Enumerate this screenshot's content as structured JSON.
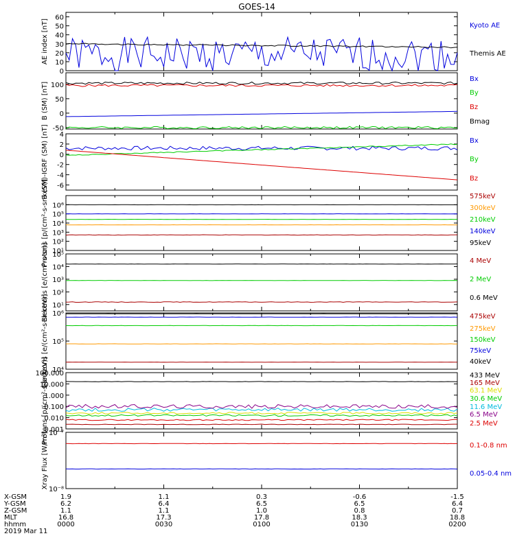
{
  "title": "GOES-14",
  "colors": {
    "black": "#000000",
    "blue": "#0000dd",
    "red": "#dd0000",
    "green": "#00cc00",
    "orange": "#ff9900",
    "cyan": "#00bbdd",
    "darkred": "#aa0000",
    "yellow": "#dddd00",
    "purple": "#880088"
  },
  "chart_data": [
    {
      "type": "line",
      "id": "ae",
      "ylabel": "AE index [nT]",
      "ylim": [
        0,
        65
      ],
      "yticks": [
        "0",
        "10",
        "20",
        "30",
        "40",
        "50",
        "60"
      ],
      "series": [
        {
          "name": "Kyoto AE",
          "color": "blue",
          "level": 18,
          "amp": 3,
          "seed": 1
        },
        {
          "name": "Themis AE",
          "color": "black",
          "level": 30,
          "amp": 0.8,
          "seed": 2
        }
      ]
    },
    {
      "type": "line",
      "id": "bsm",
      "ylabel": "B (SM) [nT]",
      "ylim": [
        -55,
        140
      ],
      "yticks": [
        "-50",
        "0",
        "50",
        "100"
      ],
      "series": [
        {
          "name": "Bx",
          "color": "blue",
          "level": -10,
          "amp": 0.2,
          "seed": 3
        },
        {
          "name": "By",
          "color": "green",
          "level": -50,
          "amp": 0.2,
          "seed": 4
        },
        {
          "name": "Bz",
          "color": "red",
          "level": 96,
          "amp": 0.2,
          "seed": 5
        },
        {
          "name": "Bmag",
          "color": "black",
          "level": 104,
          "amp": 0.2,
          "seed": 6
        }
      ]
    },
    {
      "type": "line",
      "id": "bigrf",
      "ylabel": "B (SM)-IGRF (SM) [nT]",
      "ylim": [
        -7,
        4
      ],
      "yticks": [
        "-6",
        "-4",
        "-2",
        "0",
        "2",
        "4"
      ],
      "series": [
        {
          "name": "Bx",
          "color": "blue",
          "level": 1.2,
          "amp": 0.35,
          "seed": 7
        },
        {
          "name": "By",
          "color": "green",
          "level": 0.8,
          "amp": 0.15,
          "seed": 8
        },
        {
          "name": "Bz",
          "color": "red",
          "level": -2.5,
          "amp": 0.15,
          "seed": 9
        }
      ]
    },
    {
      "type": "line",
      "id": "protons",
      "ylabel": "Protons [p/(cm²-s-sr-keV)]",
      "ylim": [
        0,
        6
      ],
      "log": true,
      "yticks": [
        "10¹",
        "10²",
        "10³",
        "10⁴",
        "10⁵",
        "10⁶"
      ],
      "series": [
        {
          "name": "575keV",
          "color": "darkred",
          "level": 1.7,
          "amp": 0.04,
          "seed": 10
        },
        {
          "name": "300keV",
          "color": "orange",
          "level": 2.8,
          "amp": 0.02,
          "seed": 11
        },
        {
          "name": "210keV",
          "color": "green",
          "level": 3.4,
          "amp": 0.02,
          "seed": 12
        },
        {
          "name": "140keV",
          "color": "blue",
          "level": 4.0,
          "amp": 0.02,
          "seed": 13
        },
        {
          "name": "95keV",
          "color": "black",
          "level": 5.0,
          "amp": 0.02,
          "seed": 14
        }
      ]
    },
    {
      "type": "line",
      "id": "electrons",
      "ylabel": "Electrons [e/(cm²-s-sr)]",
      "ylim": [
        0.5,
        5
      ],
      "log": true,
      "yticks": [
        "10¹",
        "10²",
        "10³",
        "10⁴",
        "10⁵"
      ],
      "series": [
        {
          "name": "4 MeV",
          "color": "darkred",
          "level": 1.2,
          "amp": 0.05,
          "seed": 15
        },
        {
          "name": "2 MeV",
          "color": "green",
          "level": 2.9,
          "amp": 0.02,
          "seed": 16
        },
        {
          "name": "0.6 MeV",
          "color": "black",
          "level": 4.2,
          "amp": 0.02,
          "seed": 17
        }
      ]
    },
    {
      "type": "line",
      "id": "electrons-kev",
      "ylabel": "Electrons [e/(cm²-s-sr-keV)]",
      "ylim": [
        4,
        6
      ],
      "log": true,
      "yticks": [
        "10⁴",
        "10⁵",
        "10⁶"
      ],
      "series": [
        {
          "name": "475keV",
          "color": "darkred",
          "level": 4.25,
          "amp": 0.02,
          "seed": 18
        },
        {
          "name": "275keV",
          "color": "orange",
          "level": 4.9,
          "amp": 0.02,
          "seed": 19
        },
        {
          "name": "150keV",
          "color": "green",
          "level": 5.55,
          "amp": 0.02,
          "seed": 20
        },
        {
          "name": "75keV",
          "color": "blue",
          "level": 5.85,
          "amp": 0.02,
          "seed": 21
        },
        {
          "name": "40keV",
          "color": "black",
          "level": 5.97,
          "amp": 0.01,
          "seed": 22
        }
      ]
    },
    {
      "type": "line",
      "id": "protons-mev",
      "ylabel": "Protons [p/(cm²-s-sr-keV)]",
      "ylim": [
        -3,
        2
      ],
      "log": true,
      "yticks": [
        "0.001",
        "0.010",
        "0.100",
        "1.000",
        "10.000",
        "100.000"
      ],
      "series": [
        {
          "name": "433 MeV",
          "color": "black",
          "level": 1.2,
          "amp": 0.03,
          "seed": 23
        },
        {
          "name": "165 MeV",
          "color": "darkred",
          "level": -2.6,
          "amp": 0.05,
          "seed": 24
        },
        {
          "name": "63.1 MeV",
          "color": "yellow",
          "level": -1.6,
          "amp": 0.15,
          "seed": 25
        },
        {
          "name": "30.6 MeV",
          "color": "green",
          "level": -1.8,
          "amp": 0.15,
          "seed": 26
        },
        {
          "name": "11.6 MeV",
          "color": "cyan",
          "level": -1.3,
          "amp": 0.3,
          "seed": 27
        },
        {
          "name": "6.5 MeV",
          "color": "purple",
          "level": -1.0,
          "amp": 0.35,
          "seed": 28
        },
        {
          "name": "2.5 MeV",
          "color": "red",
          "level": -2.2,
          "amp": 0.1,
          "seed": 29
        }
      ]
    },
    {
      "type": "line",
      "id": "xray",
      "ylabel": "Xray Flux [W/m²]",
      "ylim": [
        -8,
        -7
      ],
      "log": true,
      "yticks": [
        "10⁻⁸",
        "10⁻⁷"
      ],
      "series": [
        {
          "name": "0.1-0.8 nm",
          "color": "red",
          "level": -7.2,
          "amp": 0.03,
          "seed": 30
        },
        {
          "name": "0.05-0.4 nm",
          "color": "blue",
          "level": -7.65,
          "amp": 0.03,
          "seed": 31
        }
      ]
    }
  ],
  "footer": {
    "row_labels": [
      "X-GSM",
      "Y-GSM",
      "Z-GSM",
      "MLT",
      "hhmm",
      "2019 Mar 11"
    ],
    "columns": [
      {
        "values": [
          "1.9",
          "6.2",
          "1.1",
          "16.8",
          "0000"
        ]
      },
      {
        "values": [
          "1.1",
          "6.4",
          "1.1",
          "17.3",
          "0030"
        ]
      },
      {
        "values": [
          "0.3",
          "6.5",
          "1.0",
          "17.8",
          "0100"
        ]
      },
      {
        "values": [
          "-0.6",
          "6.5",
          "0.8",
          "18.3",
          "0130"
        ]
      },
      {
        "values": [
          "-1.5",
          "6.4",
          "0.7",
          "18.8",
          "0200"
        ]
      }
    ]
  }
}
